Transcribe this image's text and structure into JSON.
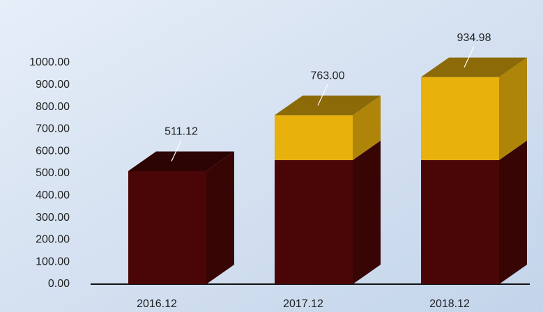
{
  "chart_data": {
    "type": "bar3d_stacked",
    "categories": [
      "2016.12",
      "2017.12",
      "2018.12"
    ],
    "series": [
      {
        "color": "#4a0606",
        "values": [
          511.12,
          560,
          560
        ]
      },
      {
        "color": "#e8b10c",
        "values": [
          0,
          203,
          374.98
        ]
      }
    ],
    "totals": [
      511.12,
      763,
      934.98
    ],
    "total_labels": [
      "511.12",
      "763.00",
      "934.98"
    ],
    "ylim": [
      0,
      1000
    ],
    "yticks": [
      {
        "value": 0,
        "label": "0.00"
      },
      {
        "value": 100,
        "label": "100.00"
      },
      {
        "value": 200,
        "label": "200.00"
      },
      {
        "value": 300,
        "label": "300.00"
      },
      {
        "value": 400,
        "label": "400.00"
      },
      {
        "value": 500,
        "label": "500.00"
      },
      {
        "value": 600,
        "label": "600.00"
      },
      {
        "value": 700,
        "label": "700.00"
      },
      {
        "value": 800,
        "label": "800.00"
      },
      {
        "value": 900,
        "label": "900.00"
      },
      {
        "value": 1000,
        "label": "1000.00"
      }
    ]
  }
}
